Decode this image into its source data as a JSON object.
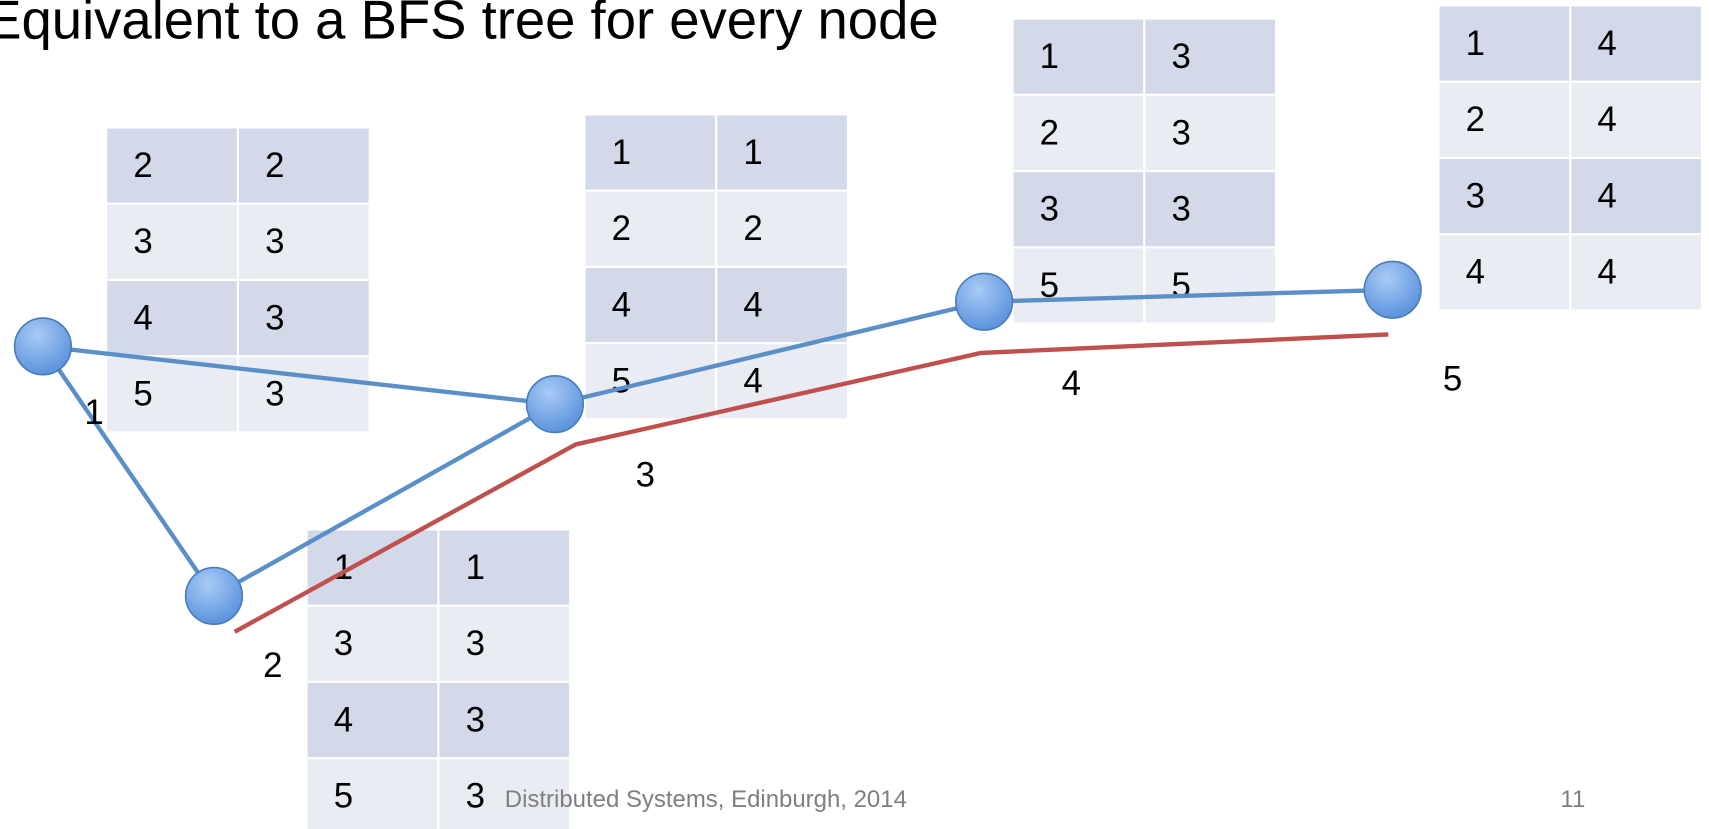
{
  "header": {
    "title": "Equivalent to a BFS tree for every node"
  },
  "nodes": [
    {
      "label": "1",
      "table": [
        [
          2,
          2
        ],
        [
          3,
          3
        ],
        [
          4,
          3
        ],
        [
          5,
          3
        ]
      ]
    },
    {
      "label": "2",
      "table": [
        [
          1,
          1
        ],
        [
          3,
          3
        ],
        [
          4,
          3
        ],
        [
          5,
          3
        ]
      ]
    },
    {
      "label": "3",
      "table": [
        [
          1,
          1
        ],
        [
          2,
          2
        ],
        [
          4,
          4
        ],
        [
          5,
          4
        ]
      ]
    },
    {
      "label": "4",
      "table": [
        [
          1,
          3
        ],
        [
          2,
          3
        ],
        [
          3,
          3
        ],
        [
          5,
          5
        ]
      ]
    },
    {
      "label": "5",
      "table": [
        [
          1,
          4
        ],
        [
          2,
          4
        ],
        [
          3,
          4
        ],
        [
          4,
          4
        ]
      ]
    }
  ],
  "footer": {
    "text": "Distributed Systems, Edinburgh, 2014",
    "page": "11"
  }
}
